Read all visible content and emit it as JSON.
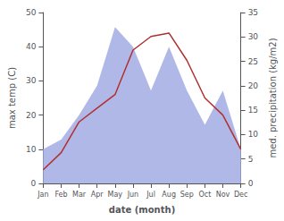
{
  "chart_data": {
    "type": "line",
    "categories": [
      "Jan",
      "Feb",
      "Mar",
      "Apr",
      "May",
      "Jun",
      "Jul",
      "Aug",
      "Sep",
      "Oct",
      "Nov",
      "Dec"
    ],
    "series": [
      {
        "type": "area",
        "axis": "y2",
        "color": "#b0b8e8",
        "values": [
          7,
          9,
          14,
          20,
          32,
          28,
          19,
          28,
          19,
          12,
          19,
          7
        ]
      },
      {
        "type": "line",
        "axis": "y",
        "color": "#b03030",
        "values": [
          4,
          9,
          18,
          22,
          26,
          39,
          43,
          44,
          36,
          25,
          20,
          10
        ]
      }
    ],
    "xlabel": "date (month)",
    "ylabel": "max temp (C)",
    "y2label": "med. precipitation (kg/m2)",
    "ylim": [
      0,
      50
    ],
    "yticks": [
      0,
      10,
      20,
      30,
      40,
      50
    ],
    "y2lim": [
      0,
      35
    ],
    "y2ticks": [
      0,
      5,
      10,
      15,
      20,
      25,
      30,
      35
    ],
    "grid": false
  }
}
